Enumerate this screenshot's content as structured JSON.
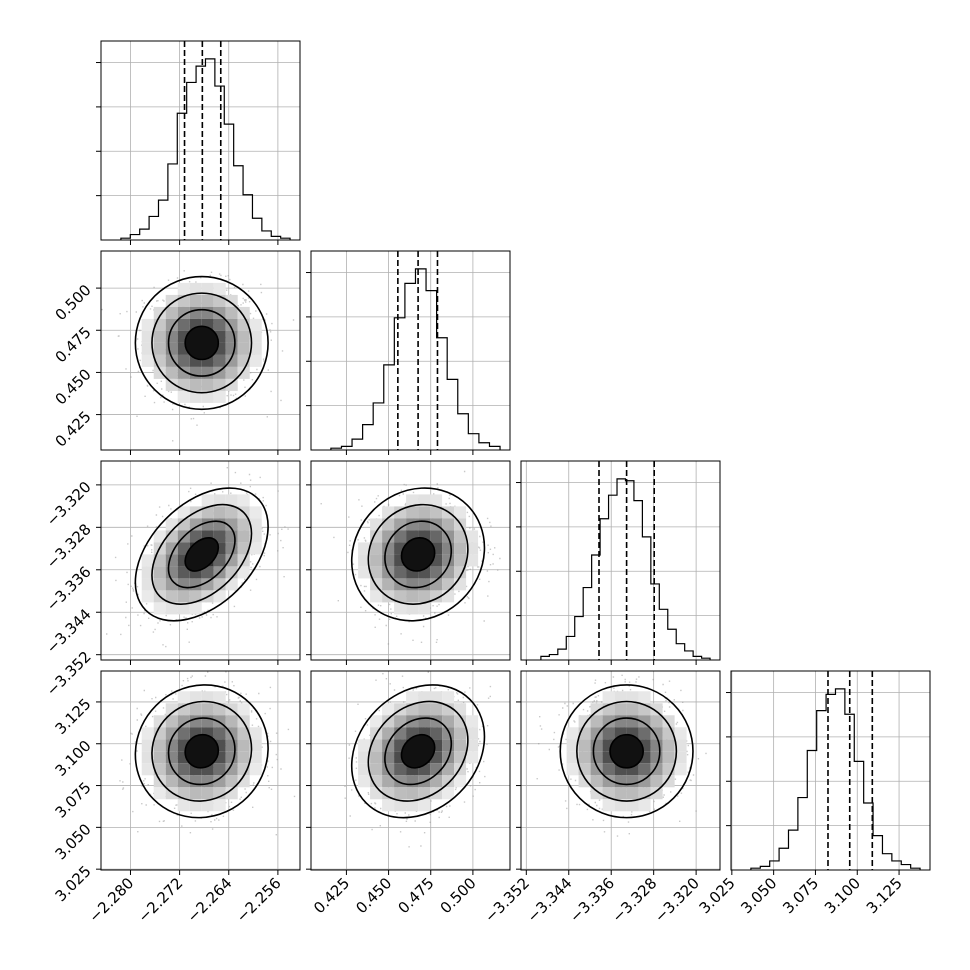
{
  "chart_data": {
    "type": "corner",
    "grid": true,
    "parameters": [
      {
        "index": 0,
        "xlim": [
          -2.2848,
          -2.2524
        ],
        "ticks": [
          -2.28,
          -2.272,
          -2.264,
          -2.256
        ],
        "tick_labels": [
          "−2.280",
          "−2.272",
          "−2.264",
          "−2.256"
        ],
        "quantiles": [
          -2.2712,
          -2.2683,
          -2.2653
        ],
        "hist": [
          0.01,
          0.03,
          0.06,
          0.13,
          0.22,
          0.42,
          0.7,
          0.87,
          0.96,
          1.0,
          0.85,
          0.64,
          0.41,
          0.25,
          0.12,
          0.05,
          0.02,
          0.01
        ],
        "contour_center": -2.2684,
        "contour_scale": 0.0072
      },
      {
        "index": 1,
        "xlim": [
          0.404,
          0.522
        ],
        "ticks": [
          0.425,
          0.45,
          0.475,
          0.5
        ],
        "tick_labels": [
          "0.425",
          "0.450",
          "0.475",
          "0.500"
        ],
        "quantiles": [
          0.4555,
          0.4675,
          0.479
        ],
        "hist": [
          0.01,
          0.02,
          0.06,
          0.14,
          0.26,
          0.47,
          0.73,
          0.92,
          1.0,
          0.88,
          0.62,
          0.39,
          0.2,
          0.09,
          0.04,
          0.02
        ],
        "contour_center": 0.4675,
        "contour_scale": 0.0268
      },
      {
        "index": 2,
        "xlim": [
          -3.353,
          -3.3155
        ],
        "ticks": [
          -3.352,
          -3.344,
          -3.336,
          -3.328,
          -3.32
        ],
        "tick_labels": [
          "−3.352",
          "−3.344",
          "−3.336",
          "−3.328",
          "−3.320"
        ],
        "quantiles": [
          -3.3383,
          -3.3331,
          -3.3279
        ],
        "hist": [
          0.02,
          0.03,
          0.06,
          0.13,
          0.24,
          0.4,
          0.58,
          0.78,
          0.91,
          1.0,
          0.99,
          0.88,
          0.68,
          0.42,
          0.28,
          0.17,
          0.09,
          0.05,
          0.02,
          0.01
        ],
        "contour_center": -3.3331,
        "contour_scale": 0.0115
      },
      {
        "index": 3,
        "xlim": [
          3.0245,
          3.1435
        ],
        "ticks": [
          3.025,
          3.05,
          3.075,
          3.1,
          3.125
        ],
        "tick_labels": [
          "3.025",
          "3.050",
          "3.075",
          "3.100",
          "3.125"
        ],
        "quantiles": [
          3.0825,
          3.0955,
          3.109
        ],
        "hist": [
          0.01,
          0.02,
          0.05,
          0.12,
          0.22,
          0.4,
          0.66,
          0.88,
          0.97,
          1.0,
          0.86,
          0.6,
          0.37,
          0.19,
          0.09,
          0.05,
          0.03,
          0.01
        ],
        "contour_center": 3.0955,
        "contour_scale": 0.0227
      }
    ],
    "correlations": {
      "1_0": 0.0,
      "2_0": 0.42,
      "2_1": 0.1,
      "3_0": 0.05,
      "3_1": 0.22,
      "3_2": 0.0
    },
    "contour_levels_sigma": [
      0.5,
      1.0,
      1.5,
      2.0
    ]
  }
}
